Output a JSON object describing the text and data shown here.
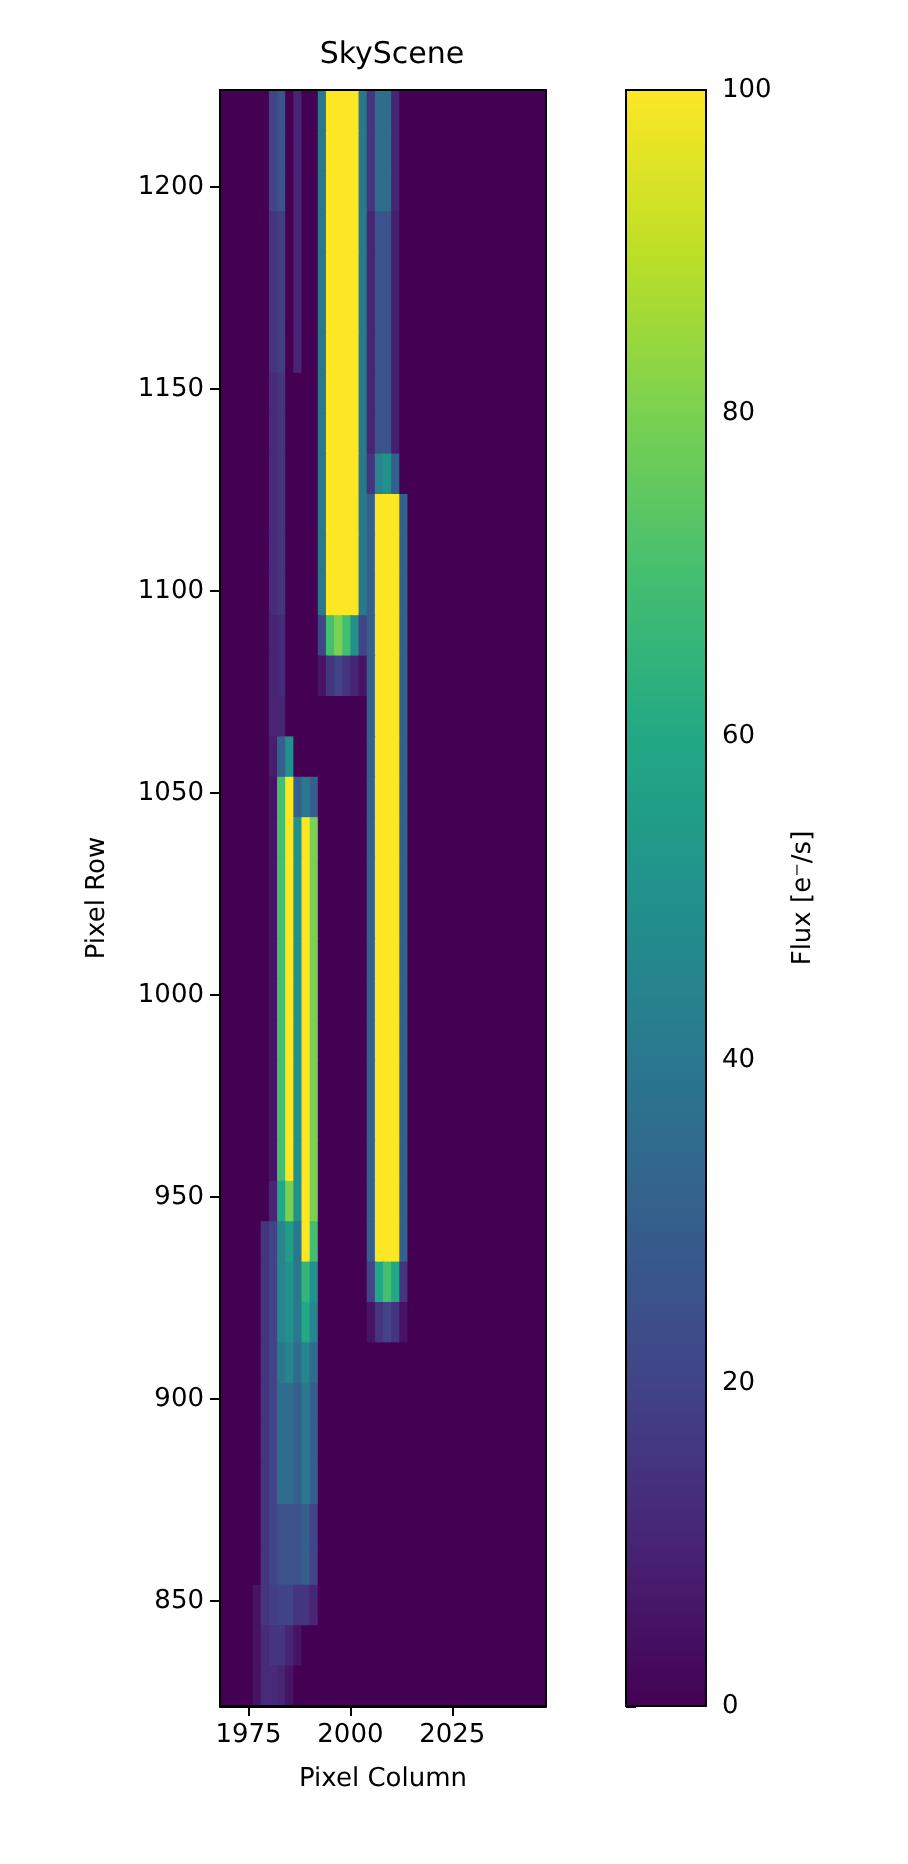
{
  "chart_data": {
    "type": "heatmap",
    "title": "SkyScene",
    "xlabel": "Pixel Column",
    "ylabel": "Pixel Row",
    "clabel": "Flux [e⁻/s]",
    "xlim": [
      1968,
      2048
    ],
    "xticks": [
      1975,
      2000,
      2025
    ],
    "ylim": [
      824,
      1224
    ],
    "yticks": [
      850,
      900,
      950,
      1000,
      1050,
      1100,
      1150,
      1200
    ],
    "clim": [
      0,
      100
    ],
    "cticks": [
      0,
      20,
      40,
      60,
      80,
      100
    ],
    "cells": [
      [
        0,
        0,
        0,
        0,
        0,
        0,
        20,
        25,
        0,
        10,
        0,
        0,
        40,
        100,
        100,
        100,
        100,
        40,
        15,
        35,
        35,
        10,
        0,
        0,
        0,
        0,
        0,
        0,
        0,
        0,
        0,
        0,
        0,
        0,
        0,
        0,
        0,
        0,
        0,
        0
      ],
      [
        0,
        0,
        0,
        0,
        0,
        0,
        20,
        25,
        0,
        10,
        0,
        0,
        40,
        100,
        100,
        100,
        100,
        40,
        15,
        35,
        35,
        10,
        0,
        0,
        0,
        0,
        0,
        0,
        0,
        0,
        0,
        0,
        0,
        0,
        0,
        0,
        0,
        0,
        0,
        0
      ],
      [
        0,
        0,
        0,
        0,
        0,
        0,
        20,
        25,
        0,
        10,
        0,
        0,
        40,
        100,
        100,
        100,
        100,
        40,
        15,
        35,
        35,
        10,
        0,
        0,
        0,
        0,
        0,
        0,
        0,
        0,
        0,
        0,
        0,
        0,
        0,
        0,
        0,
        0,
        0,
        0
      ],
      [
        0,
        0,
        0,
        0,
        0,
        0,
        15,
        18,
        0,
        10,
        0,
        0,
        40,
        100,
        100,
        100,
        100,
        40,
        10,
        25,
        25,
        8,
        0,
        0,
        0,
        0,
        0,
        0,
        0,
        0,
        0,
        0,
        0,
        0,
        0,
        0,
        0,
        0,
        0,
        0
      ],
      [
        0,
        0,
        0,
        0,
        0,
        0,
        15,
        18,
        0,
        10,
        0,
        0,
        40,
        100,
        100,
        100,
        100,
        40,
        10,
        25,
        25,
        8,
        0,
        0,
        0,
        0,
        0,
        0,
        0,
        0,
        0,
        0,
        0,
        0,
        0,
        0,
        0,
        0,
        0,
        0
      ],
      [
        0,
        0,
        0,
        0,
        0,
        0,
        15,
        18,
        0,
        10,
        0,
        0,
        40,
        100,
        100,
        100,
        100,
        40,
        10,
        25,
        25,
        8,
        0,
        0,
        0,
        0,
        0,
        0,
        0,
        0,
        0,
        0,
        0,
        0,
        0,
        0,
        0,
        0,
        0,
        0
      ],
      [
        0,
        0,
        0,
        0,
        0,
        0,
        15,
        18,
        0,
        10,
        0,
        0,
        40,
        100,
        100,
        100,
        100,
        40,
        10,
        25,
        25,
        8,
        0,
        0,
        0,
        0,
        0,
        0,
        0,
        0,
        0,
        0,
        0,
        0,
        0,
        0,
        0,
        0,
        0,
        0
      ],
      [
        0,
        0,
        0,
        0,
        0,
        0,
        12,
        15,
        0,
        0,
        0,
        0,
        40,
        100,
        100,
        100,
        100,
        40,
        10,
        25,
        25,
        8,
        0,
        0,
        0,
        0,
        0,
        0,
        0,
        0,
        0,
        0,
        0,
        0,
        0,
        0,
        0,
        0,
        0,
        0
      ],
      [
        0,
        0,
        0,
        0,
        0,
        0,
        12,
        15,
        0,
        0,
        0,
        0,
        40,
        100,
        100,
        100,
        100,
        40,
        10,
        25,
        25,
        8,
        0,
        0,
        0,
        0,
        0,
        0,
        0,
        0,
        0,
        0,
        0,
        0,
        0,
        0,
        0,
        0,
        0,
        0
      ],
      [
        0,
        0,
        0,
        0,
        0,
        0,
        12,
        15,
        0,
        0,
        0,
        0,
        40,
        100,
        100,
        100,
        100,
        40,
        15,
        45,
        50,
        30,
        0,
        0,
        0,
        0,
        0,
        0,
        0,
        0,
        0,
        0,
        0,
        0,
        0,
        0,
        0,
        0,
        0,
        0
      ],
      [
        0,
        0,
        0,
        0,
        0,
        0,
        12,
        15,
        0,
        0,
        0,
        0,
        40,
        100,
        100,
        100,
        100,
        40,
        30,
        100,
        100,
        100,
        30,
        0,
        0,
        0,
        0,
        0,
        0,
        0,
        0,
        0,
        0,
        0,
        0,
        0,
        0,
        0,
        0,
        0
      ],
      [
        0,
        0,
        0,
        0,
        0,
        0,
        12,
        15,
        0,
        0,
        0,
        0,
        40,
        100,
        100,
        100,
        100,
        40,
        30,
        100,
        100,
        100,
        30,
        0,
        0,
        0,
        0,
        0,
        0,
        0,
        0,
        0,
        0,
        0,
        0,
        0,
        0,
        0,
        0,
        0
      ],
      [
        0,
        0,
        0,
        0,
        0,
        0,
        12,
        15,
        0,
        0,
        0,
        0,
        40,
        100,
        100,
        100,
        100,
        40,
        30,
        100,
        100,
        100,
        30,
        0,
        0,
        0,
        0,
        0,
        0,
        0,
        0,
        0,
        0,
        0,
        0,
        0,
        0,
        0,
        0,
        0
      ],
      [
        0,
        0,
        0,
        0,
        0,
        0,
        10,
        12,
        0,
        0,
        0,
        0,
        20,
        70,
        80,
        70,
        50,
        20,
        30,
        100,
        100,
        100,
        30,
        0,
        0,
        0,
        0,
        0,
        0,
        0,
        0,
        0,
        0,
        0,
        0,
        0,
        0,
        0,
        0,
        0
      ],
      [
        0,
        0,
        0,
        0,
        0,
        0,
        10,
        12,
        0,
        0,
        0,
        0,
        5,
        15,
        20,
        15,
        10,
        5,
        30,
        100,
        100,
        100,
        30,
        0,
        0,
        0,
        0,
        0,
        0,
        0,
        0,
        0,
        0,
        0,
        0,
        0,
        0,
        0,
        0,
        0
      ],
      [
        0,
        0,
        0,
        0,
        0,
        0,
        10,
        10,
        0,
        0,
        0,
        0,
        0,
        0,
        0,
        0,
        0,
        0,
        30,
        100,
        100,
        100,
        30,
        0,
        0,
        0,
        0,
        0,
        0,
        0,
        0,
        0,
        0,
        0,
        0,
        0,
        0,
        0,
        0,
        0
      ],
      [
        0,
        0,
        0,
        0,
        0,
        0,
        8,
        30,
        50,
        0,
        0,
        0,
        0,
        0,
        0,
        0,
        0,
        0,
        30,
        100,
        100,
        100,
        30,
        0,
        0,
        0,
        0,
        0,
        0,
        0,
        0,
        0,
        0,
        0,
        0,
        0,
        0,
        0,
        0,
        0
      ],
      [
        0,
        0,
        0,
        0,
        0,
        0,
        5,
        70,
        100,
        30,
        40,
        30,
        0,
        0,
        0,
        0,
        0,
        0,
        30,
        100,
        100,
        100,
        30,
        0,
        0,
        0,
        0,
        0,
        0,
        0,
        0,
        0,
        0,
        0,
        0,
        0,
        0,
        0,
        0,
        0
      ],
      [
        0,
        0,
        0,
        0,
        0,
        0,
        5,
        70,
        100,
        50,
        100,
        80,
        0,
        0,
        0,
        0,
        0,
        0,
        30,
        100,
        100,
        100,
        30,
        0,
        0,
        0,
        0,
        0,
        0,
        0,
        0,
        0,
        0,
        0,
        0,
        0,
        0,
        0,
        0,
        0
      ],
      [
        0,
        0,
        0,
        0,
        0,
        0,
        5,
        70,
        100,
        50,
        100,
        80,
        0,
        0,
        0,
        0,
        0,
        0,
        30,
        100,
        100,
        100,
        30,
        0,
        0,
        0,
        0,
        0,
        0,
        0,
        0,
        0,
        0,
        0,
        0,
        0,
        0,
        0,
        0,
        0
      ],
      [
        0,
        0,
        0,
        0,
        0,
        0,
        5,
        70,
        100,
        50,
        100,
        80,
        0,
        0,
        0,
        0,
        0,
        0,
        30,
        100,
        100,
        100,
        30,
        0,
        0,
        0,
        0,
        0,
        0,
        0,
        0,
        0,
        0,
        0,
        0,
        0,
        0,
        0,
        0,
        0
      ],
      [
        0,
        0,
        0,
        0,
        0,
        0,
        5,
        70,
        100,
        50,
        100,
        80,
        0,
        0,
        0,
        0,
        0,
        0,
        30,
        100,
        100,
        100,
        30,
        0,
        0,
        0,
        0,
        0,
        0,
        0,
        0,
        0,
        0,
        0,
        0,
        0,
        0,
        0,
        0,
        0
      ],
      [
        0,
        0,
        0,
        0,
        0,
        0,
        5,
        70,
        100,
        50,
        100,
        80,
        0,
        0,
        0,
        0,
        0,
        0,
        30,
        100,
        100,
        100,
        30,
        0,
        0,
        0,
        0,
        0,
        0,
        0,
        0,
        0,
        0,
        0,
        0,
        0,
        0,
        0,
        0,
        0
      ],
      [
        0,
        0,
        0,
        0,
        0,
        0,
        5,
        70,
        100,
        50,
        100,
        80,
        0,
        0,
        0,
        0,
        0,
        0,
        30,
        100,
        100,
        100,
        30,
        0,
        0,
        0,
        0,
        0,
        0,
        0,
        0,
        0,
        0,
        0,
        0,
        0,
        0,
        0,
        0,
        0
      ],
      [
        0,
        0,
        0,
        0,
        0,
        0,
        5,
        70,
        100,
        50,
        100,
        80,
        0,
        0,
        0,
        0,
        0,
        0,
        30,
        100,
        100,
        100,
        30,
        0,
        0,
        0,
        0,
        0,
        0,
        0,
        0,
        0,
        0,
        0,
        0,
        0,
        0,
        0,
        0,
        0
      ],
      [
        0,
        0,
        0,
        0,
        0,
        0,
        5,
        70,
        100,
        50,
        100,
        80,
        0,
        0,
        0,
        0,
        0,
        0,
        30,
        100,
        100,
        100,
        30,
        0,
        0,
        0,
        0,
        0,
        0,
        0,
        0,
        0,
        0,
        0,
        0,
        0,
        0,
        0,
        0,
        0
      ],
      [
        0,
        0,
        0,
        0,
        0,
        0,
        5,
        70,
        100,
        50,
        100,
        80,
        0,
        0,
        0,
        0,
        0,
        0,
        30,
        100,
        100,
        100,
        30,
        0,
        0,
        0,
        0,
        0,
        0,
        0,
        0,
        0,
        0,
        0,
        0,
        0,
        0,
        0,
        0,
        0
      ],
      [
        0,
        0,
        0,
        0,
        0,
        0,
        10,
        60,
        80,
        50,
        100,
        80,
        0,
        0,
        0,
        0,
        0,
        0,
        30,
        100,
        100,
        100,
        30,
        0,
        0,
        0,
        0,
        0,
        0,
        0,
        0,
        0,
        0,
        0,
        0,
        0,
        0,
        0,
        0,
        0
      ],
      [
        0,
        0,
        0,
        0,
        0,
        15,
        20,
        45,
        55,
        40,
        100,
        70,
        0,
        0,
        0,
        0,
        0,
        0,
        30,
        100,
        100,
        100,
        30,
        0,
        0,
        0,
        0,
        0,
        0,
        0,
        0,
        0,
        0,
        0,
        0,
        0,
        0,
        0,
        0,
        0
      ],
      [
        0,
        0,
        0,
        0,
        0,
        15,
        20,
        45,
        50,
        40,
        65,
        50,
        0,
        0,
        0,
        0,
        0,
        0,
        20,
        60,
        70,
        60,
        15,
        0,
        0,
        0,
        0,
        0,
        0,
        0,
        0,
        0,
        0,
        0,
        0,
        0,
        0,
        0,
        0,
        0
      ],
      [
        0,
        0,
        0,
        0,
        0,
        15,
        20,
        45,
        50,
        40,
        60,
        45,
        0,
        0,
        0,
        0,
        0,
        0,
        5,
        15,
        20,
        15,
        5,
        0,
        0,
        0,
        0,
        0,
        0,
        0,
        0,
        0,
        0,
        0,
        0,
        0,
        0,
        0,
        0,
        0
      ],
      [
        0,
        0,
        0,
        0,
        0,
        15,
        20,
        40,
        45,
        35,
        45,
        35,
        0,
        0,
        0,
        0,
        0,
        0,
        0,
        0,
        0,
        0,
        0,
        0,
        0,
        0,
        0,
        0,
        0,
        0,
        0,
        0,
        0,
        0,
        0,
        0,
        0,
        0,
        0,
        0
      ],
      [
        0,
        0,
        0,
        0,
        0,
        15,
        20,
        35,
        35,
        30,
        40,
        30,
        0,
        0,
        0,
        0,
        0,
        0,
        0,
        0,
        0,
        0,
        0,
        0,
        0,
        0,
        0,
        0,
        0,
        0,
        0,
        0,
        0,
        0,
        0,
        0,
        0,
        0,
        0,
        0
      ],
      [
        0,
        0,
        0,
        0,
        0,
        15,
        20,
        35,
        35,
        30,
        40,
        30,
        0,
        0,
        0,
        0,
        0,
        0,
        0,
        0,
        0,
        0,
        0,
        0,
        0,
        0,
        0,
        0,
        0,
        0,
        0,
        0,
        0,
        0,
        0,
        0,
        0,
        0,
        0,
        0
      ],
      [
        0,
        0,
        0,
        0,
        0,
        15,
        20,
        35,
        35,
        30,
        40,
        30,
        0,
        0,
        0,
        0,
        0,
        0,
        0,
        0,
        0,
        0,
        0,
        0,
        0,
        0,
        0,
        0,
        0,
        0,
        0,
        0,
        0,
        0,
        0,
        0,
        0,
        0,
        0,
        0
      ],
      [
        0,
        0,
        0,
        0,
        0,
        15,
        20,
        25,
        25,
        25,
        30,
        20,
        0,
        0,
        0,
        0,
        0,
        0,
        0,
        0,
        0,
        0,
        0,
        0,
        0,
        0,
        0,
        0,
        0,
        0,
        0,
        0,
        0,
        0,
        0,
        0,
        0,
        0,
        0,
        0
      ],
      [
        0,
        0,
        0,
        0,
        0,
        15,
        20,
        25,
        25,
        25,
        30,
        20,
        0,
        0,
        0,
        0,
        0,
        0,
        0,
        0,
        0,
        0,
        0,
        0,
        0,
        0,
        0,
        0,
        0,
        0,
        0,
        0,
        0,
        0,
        0,
        0,
        0,
        0,
        0,
        0
      ],
      [
        0,
        0,
        0,
        0,
        5,
        15,
        18,
        20,
        20,
        15,
        15,
        10,
        0,
        0,
        0,
        0,
        0,
        0,
        0,
        0,
        0,
        0,
        0,
        0,
        0,
        0,
        0,
        0,
        0,
        0,
        0,
        0,
        0,
        0,
        0,
        0,
        0,
        0,
        0,
        0
      ],
      [
        0,
        0,
        0,
        0,
        5,
        12,
        15,
        15,
        10,
        5,
        0,
        0,
        0,
        0,
        0,
        0,
        0,
        0,
        0,
        0,
        0,
        0,
        0,
        0,
        0,
        0,
        0,
        0,
        0,
        0,
        0,
        0,
        0,
        0,
        0,
        0,
        0,
        0,
        0,
        0
      ],
      [
        0,
        0,
        0,
        0,
        5,
        12,
        12,
        10,
        5,
        0,
        0,
        0,
        0,
        0,
        0,
        0,
        0,
        0,
        0,
        0,
        0,
        0,
        0,
        0,
        0,
        0,
        0,
        0,
        0,
        0,
        0,
        0,
        0,
        0,
        0,
        0,
        0,
        0,
        0,
        0
      ]
    ]
  }
}
